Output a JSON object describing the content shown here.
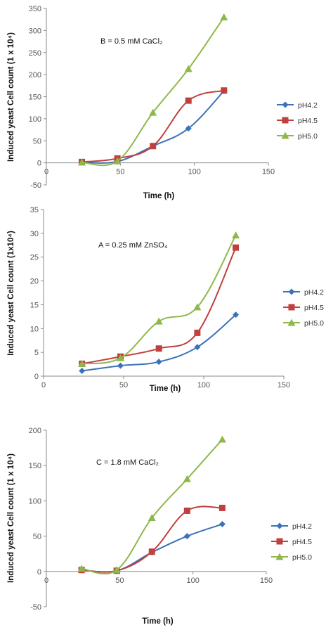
{
  "chart_data": [
    {
      "type": "line",
      "annotation": "B = 0.5 mM CaCl₂",
      "xlabel": "Time (h)",
      "ylabel": "Induced yeast Cell count (1 x 10⁴)",
      "xlim": [
        0,
        150
      ],
      "ylim": [
        -50,
        350
      ],
      "xticks": [
        "0",
        "50",
        "100",
        "150"
      ],
      "yticks": [
        "-50",
        "0",
        "50",
        "100",
        "150",
        "200",
        "250",
        "300",
        "350"
      ],
      "grid": false,
      "legend_position": "right",
      "x": [
        24,
        48,
        72,
        96,
        120
      ],
      "series": [
        {
          "name": "pH4.2",
          "color": "#3b73b9",
          "marker": "diamond",
          "values": [
            1,
            3,
            38,
            78,
            163
          ]
        },
        {
          "name": "pH4.5",
          "color": "#c0403d",
          "marker": "square",
          "values": [
            2,
            10,
            38,
            141,
            164
          ]
        },
        {
          "name": "pH5.0",
          "color": "#8fb84a",
          "marker": "triangle",
          "values": [
            1,
            4,
            114,
            213,
            330
          ]
        }
      ]
    },
    {
      "type": "line",
      "annotation": "A = 0.25 mM ZnSO₄",
      "xlabel": "Time (h)",
      "ylabel": "Induced yeast Cell count (1x10⁴)",
      "xlim": [
        0,
        150
      ],
      "ylim": [
        0,
        35
      ],
      "xticks": [
        "0",
        "50",
        "100",
        "150"
      ],
      "yticks": [
        "0",
        "5",
        "10",
        "15",
        "20",
        "25",
        "30",
        "35"
      ],
      "grid": false,
      "legend_position": "right",
      "x": [
        24,
        48,
        72,
        96,
        120
      ],
      "series": [
        {
          "name": "pH4.2",
          "color": "#3b73b9",
          "marker": "diamond",
          "values": [
            1.1,
            2.2,
            3.0,
            6.1,
            12.9
          ]
        },
        {
          "name": "pH4.5",
          "color": "#c0403d",
          "marker": "square",
          "values": [
            2.6,
            4.1,
            5.8,
            9.1,
            27.0
          ]
        },
        {
          "name": "pH5.0",
          "color": "#8fb84a",
          "marker": "triangle",
          "values": [
            2.6,
            3.8,
            11.5,
            14.5,
            29.6
          ]
        }
      ]
    },
    {
      "type": "line",
      "annotation": "C = 1.8 mM CaCl₂",
      "xlabel": "Time (h)",
      "ylabel": "Induced yeast Cell count (1 x 10⁴)",
      "xlim": [
        0,
        150
      ],
      "ylim": [
        -50,
        200
      ],
      "xticks": [
        "0",
        "50",
        "100",
        "150"
      ],
      "yticks": [
        "-50",
        "0",
        "50",
        "100",
        "150",
        "200"
      ],
      "grid": false,
      "legend_position": "right",
      "x": [
        24,
        48,
        72,
        96,
        120
      ],
      "series": [
        {
          "name": "pH4.2",
          "color": "#3b73b9",
          "marker": "diamond",
          "values": [
            2,
            1,
            27,
            50,
            67
          ]
        },
        {
          "name": "pH4.5",
          "color": "#c0403d",
          "marker": "square",
          "values": [
            2,
            1,
            28,
            86,
            90
          ]
        },
        {
          "name": "pH5.0",
          "color": "#8fb84a",
          "marker": "triangle",
          "values": [
            4,
            2,
            76,
            131,
            187
          ]
        }
      ]
    }
  ]
}
